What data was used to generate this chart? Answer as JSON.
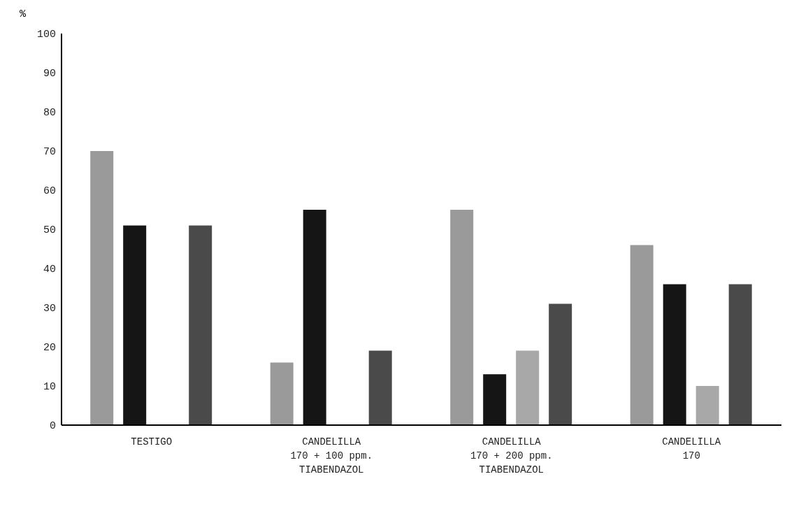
{
  "chart_data": {
    "type": "bar",
    "ylabel": "%",
    "categories": [
      "TESTIGO",
      "CANDELILLA\n170 + 100 ppm.\nTIABENDAZOL",
      "CANDELILLA\n170 + 200 ppm.\nTIABENDAZOL",
      "CANDELILLA\n170"
    ],
    "series": [
      {
        "color": "#9a9a9a",
        "values": [
          70,
          16,
          55,
          46
        ]
      },
      {
        "color": "#151515",
        "values": [
          51,
          55,
          13,
          36
        ]
      },
      {
        "color": "#a8a8a8",
        "values": [
          null,
          null,
          19,
          10
        ]
      },
      {
        "color": "#4a4a4a",
        "values": [
          51,
          19,
          31,
          36
        ]
      }
    ],
    "ylim": [
      0,
      100
    ],
    "yticks": [
      0,
      10,
      20,
      30,
      40,
      50,
      60,
      70,
      80,
      90,
      100
    ],
    "grid": false,
    "legend": false
  }
}
